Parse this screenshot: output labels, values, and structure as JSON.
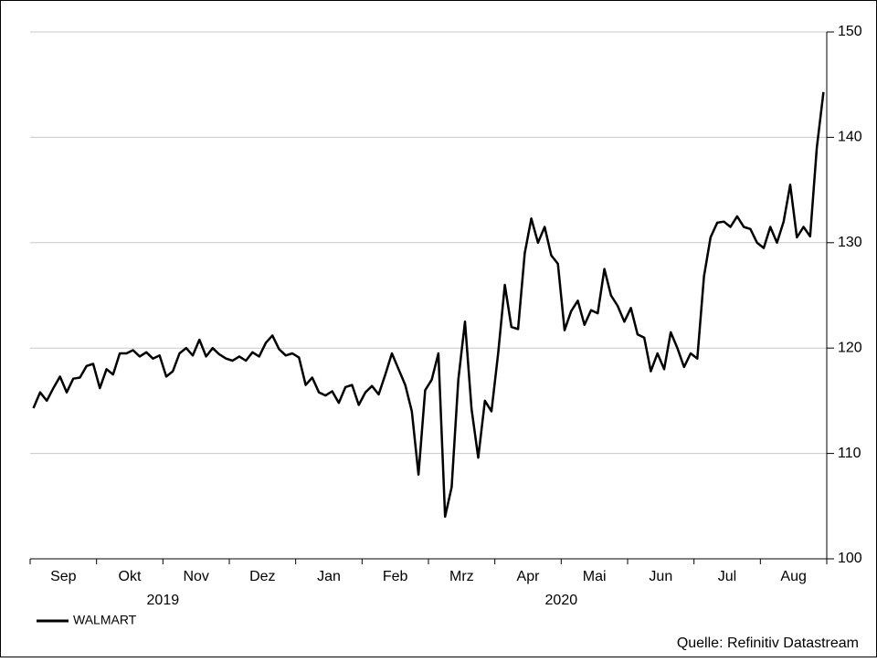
{
  "chart_data": {
    "type": "line",
    "categories": [
      null,
      null,
      null,
      null,
      null,
      "Sep",
      null,
      null,
      null,
      null,
      null,
      null,
      null,
      null,
      null,
      "Okt",
      null,
      null,
      null,
      null,
      null,
      null,
      null,
      null,
      null,
      "Nov",
      null,
      null,
      null,
      null,
      null,
      null,
      null,
      null,
      null,
      "Dez",
      null,
      null,
      null,
      null,
      null,
      null,
      null,
      null,
      null,
      "Jan",
      null,
      null,
      null,
      null,
      null,
      null,
      null,
      null,
      null,
      "Feb",
      null,
      null,
      null,
      null,
      null,
      null,
      null,
      null,
      null,
      "Mrz",
      null,
      null,
      null,
      null,
      null,
      null,
      null,
      null,
      null,
      "Apr",
      null,
      null,
      null,
      null,
      null,
      null,
      null,
      null,
      null,
      "Mai",
      null,
      null,
      null,
      null,
      null,
      null,
      null,
      null,
      null,
      "Jun",
      null,
      null,
      null,
      null,
      null,
      null,
      null,
      null,
      null,
      "Jul",
      null,
      null,
      null,
      null,
      null,
      null,
      null,
      null,
      null,
      "Aug",
      null,
      null,
      null,
      null
    ],
    "year_labels": [
      "2019",
      "2020"
    ],
    "series": [
      {
        "name": "WALMART",
        "color": "#000000",
        "values": [
          114.3,
          115.8,
          115.0,
          116.2,
          117.3,
          115.8,
          117.1,
          117.2,
          118.3,
          118.5,
          116.2,
          118.0,
          117.5,
          119.5,
          119.5,
          119.8,
          119.2,
          119.6,
          119.0,
          119.3,
          117.3,
          117.8,
          119.5,
          120.0,
          119.3,
          120.8,
          119.2,
          120.0,
          119.4,
          119.0,
          118.8,
          119.2,
          118.8,
          119.6,
          119.2,
          120.5,
          121.2,
          119.9,
          119.3,
          119.5,
          119.1,
          116.5,
          117.2,
          115.8,
          115.5,
          115.9,
          114.8,
          116.3,
          116.5,
          114.6,
          115.8,
          116.4,
          115.6,
          117.5,
          119.5,
          118.0,
          116.5,
          114.0,
          108.0,
          116.0,
          117.0,
          119.5,
          104.0,
          106.8,
          117.0,
          122.5,
          114.2,
          109.6,
          115.0,
          114.0,
          119.5,
          126.0,
          122.0,
          121.8,
          129.0,
          132.3,
          130.0,
          131.5,
          128.8,
          128.0,
          121.7,
          123.5,
          124.5,
          122.2,
          123.6,
          123.3,
          127.5,
          125.0,
          124.0,
          122.5,
          123.8,
          121.3,
          121.0,
          117.8,
          119.5,
          118.0,
          121.5,
          120.0,
          118.2,
          119.5,
          119.0,
          126.8,
          130.5,
          131.9,
          132.0,
          131.5,
          132.5,
          131.5,
          131.3,
          130.0,
          129.5,
          131.5,
          130.0,
          132.0,
          135.5,
          130.5,
          131.5,
          130.6,
          139.0,
          144.3
        ]
      }
    ],
    "ylim": [
      100,
      150
    ],
    "yticks": [
      100,
      110,
      120,
      130,
      140,
      150
    ],
    "grid": true,
    "legend": "bottom-left",
    "source": "Quelle: Refinitiv Datastream"
  }
}
